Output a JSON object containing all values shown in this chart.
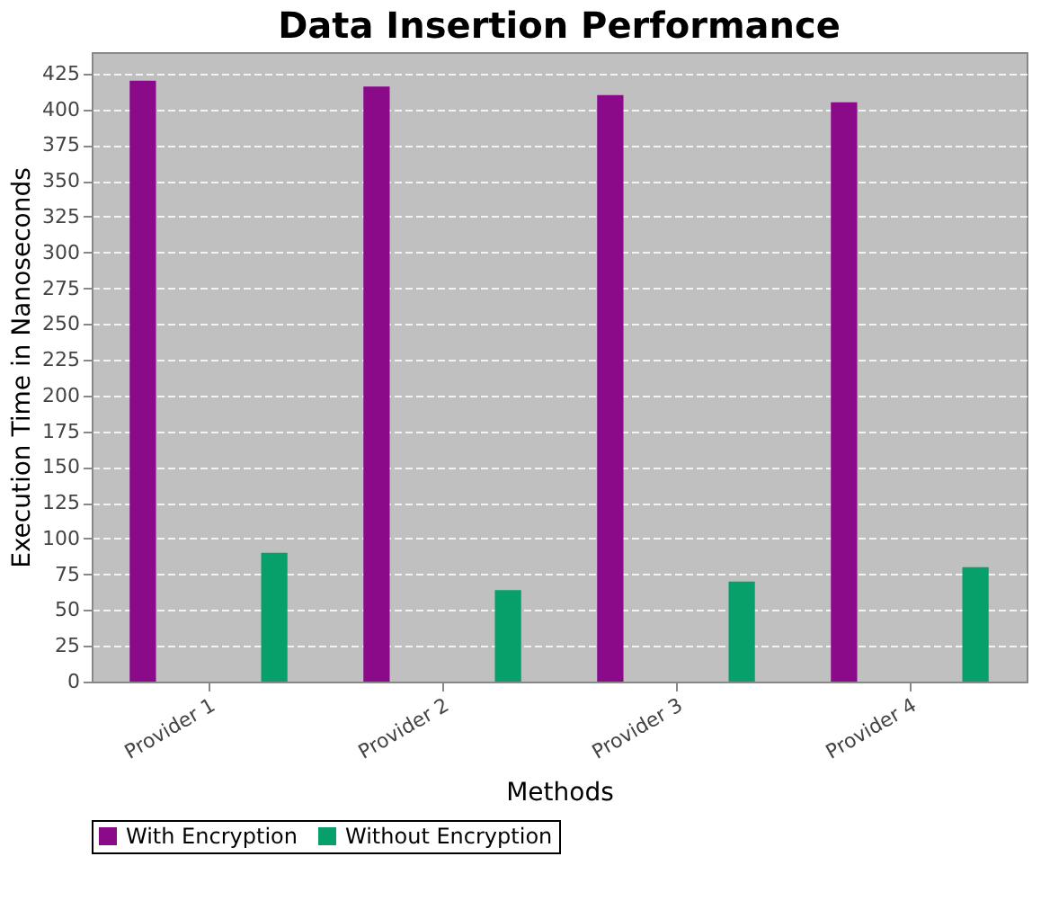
{
  "chart_data": {
    "type": "bar",
    "title": "Data Insertion Performance",
    "xlabel": "Methods",
    "ylabel": "Execution Time in Nanoseconds",
    "categories": [
      "Provider 1",
      "Provider 2",
      "Provider 3",
      "Provider 4"
    ],
    "series": [
      {
        "name": "With Encryption",
        "color": "#8a0a8a",
        "values": [
          420,
          416,
          410,
          405
        ]
      },
      {
        "name": "Without Encryption",
        "color": "#08a06a",
        "values": [
          90,
          64,
          70,
          80
        ]
      }
    ],
    "ylim": [
      0,
      440
    ],
    "yticks": [
      0,
      25,
      50,
      75,
      100,
      125,
      150,
      175,
      200,
      225,
      250,
      275,
      300,
      325,
      350,
      375,
      400,
      425
    ],
    "grid": "y",
    "legend": "bottom"
  }
}
